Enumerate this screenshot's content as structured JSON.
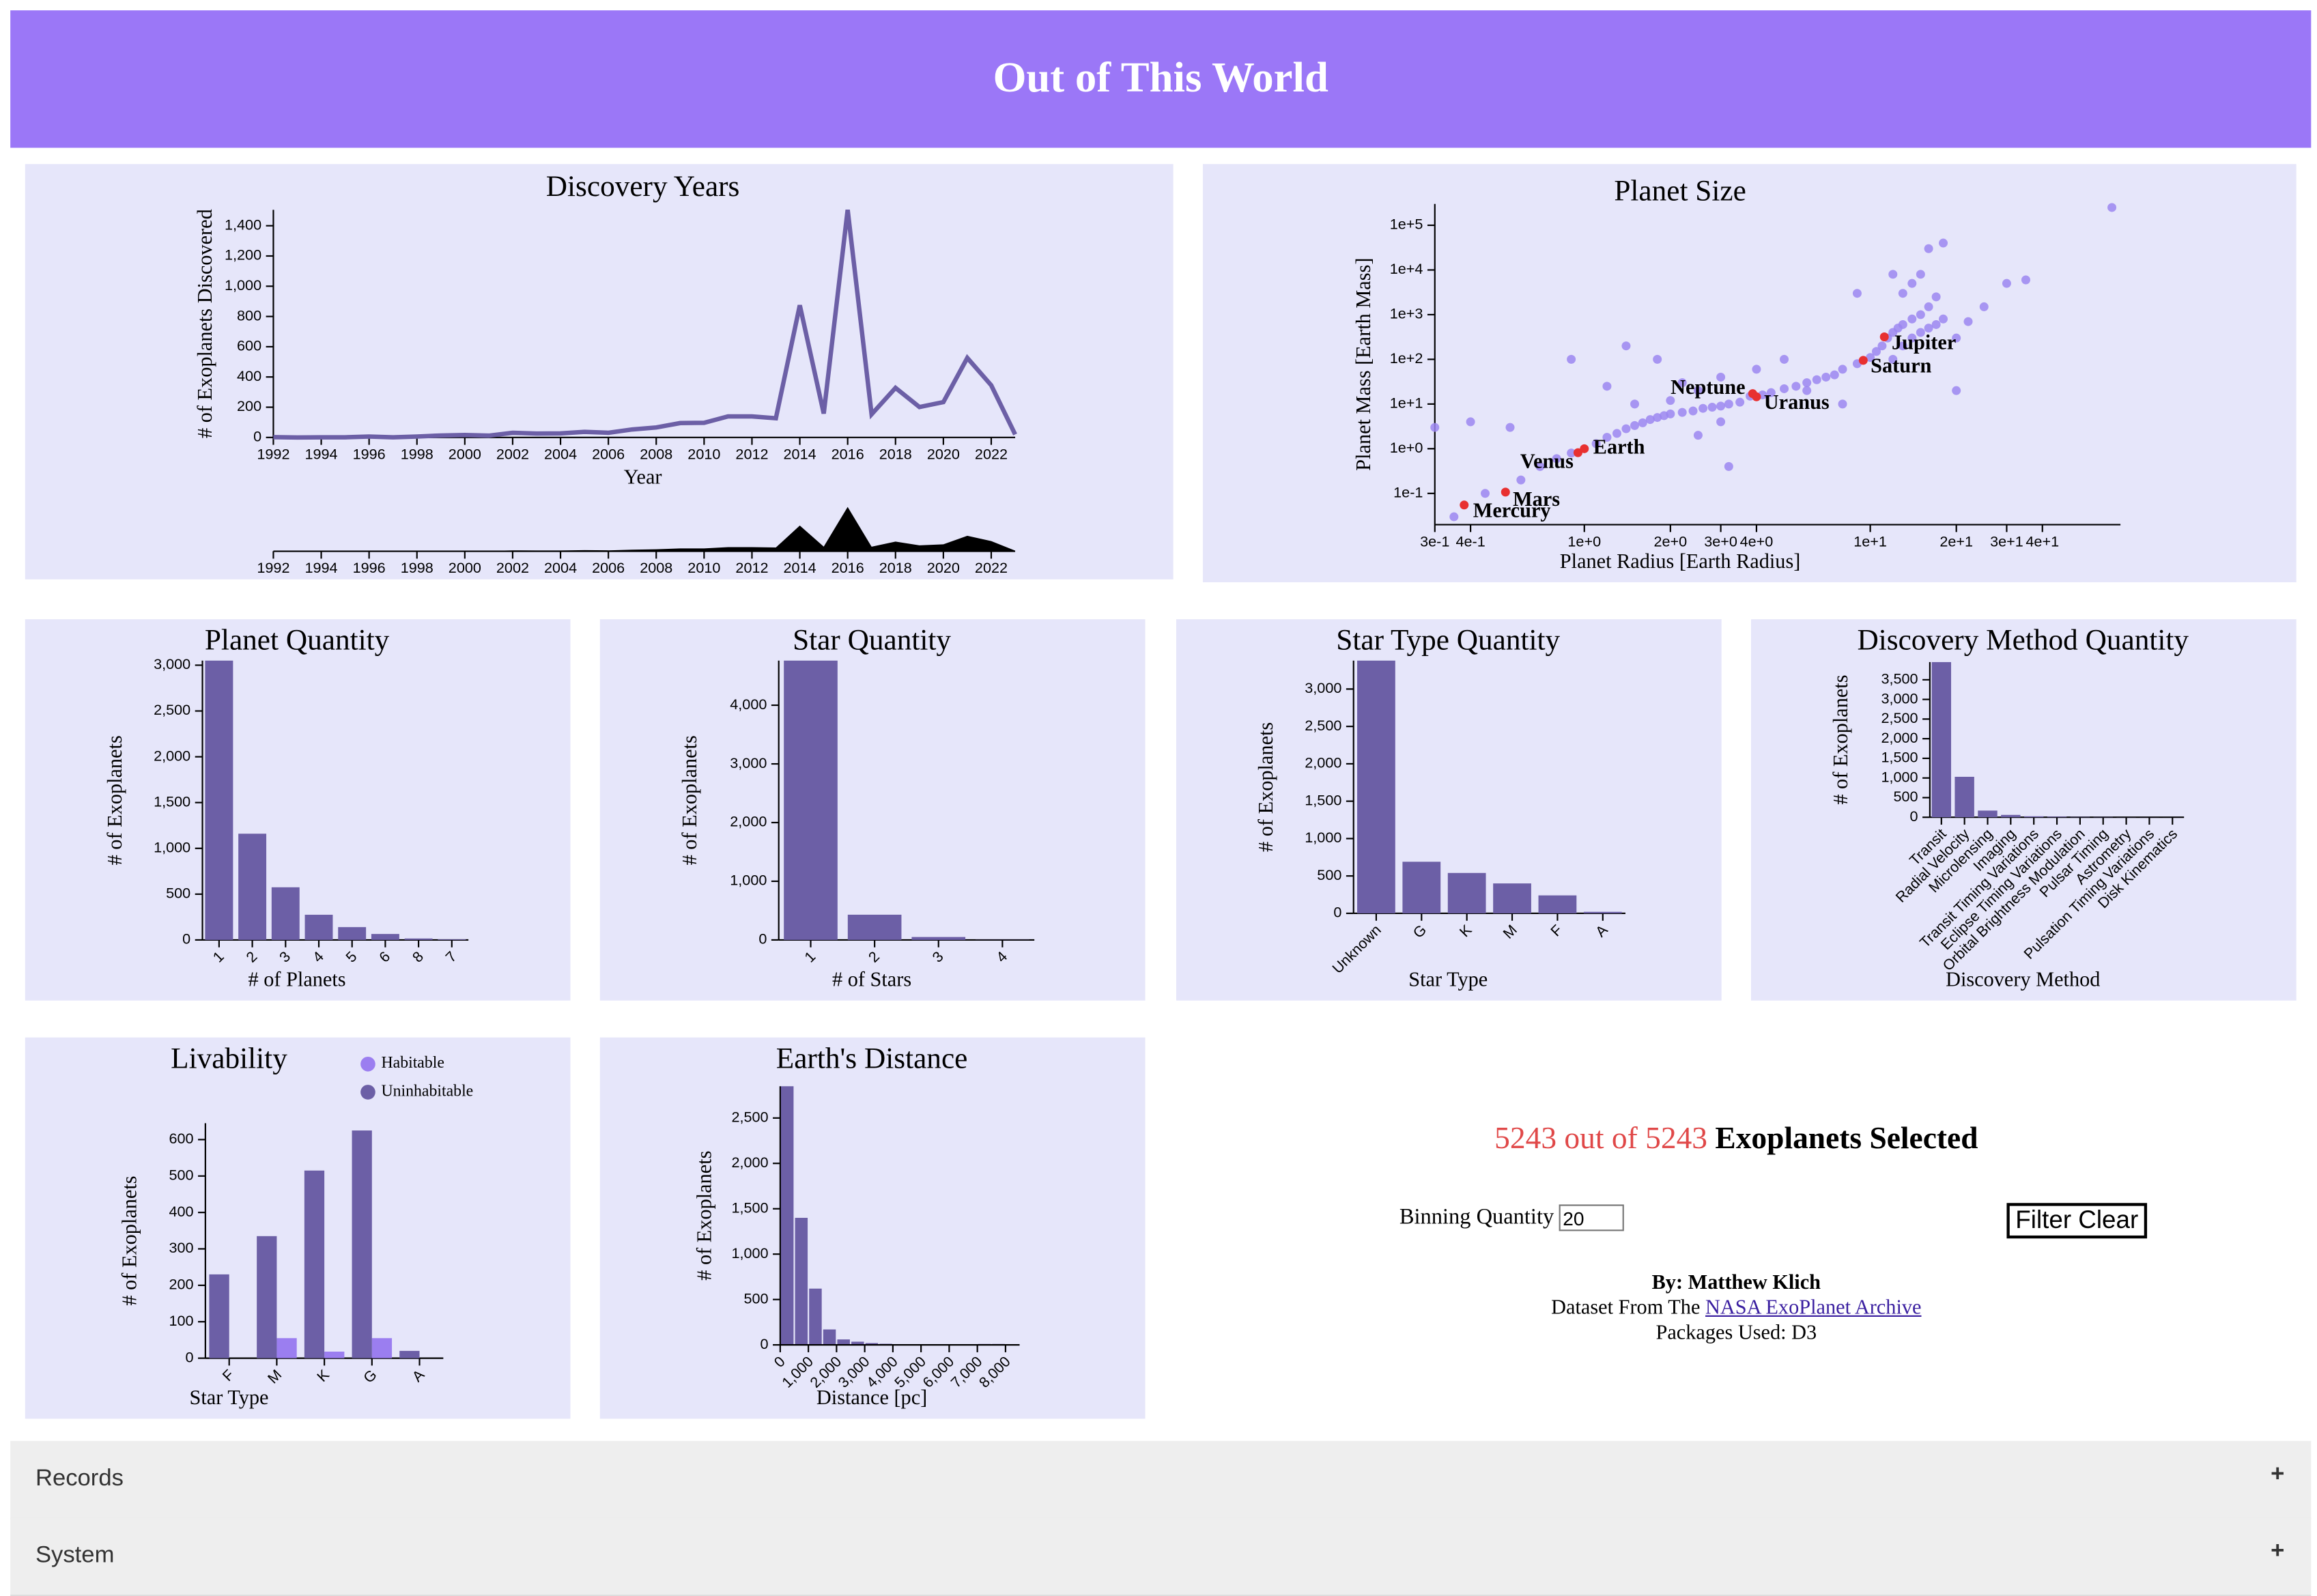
{
  "header": {
    "title": "Out of This World"
  },
  "chart_data": [
    {
      "type": "line",
      "title": "Discovery Years",
      "x_label": "Year",
      "y_label": "# of Exoplanets Discovered",
      "x": [
        1992,
        1993,
        1994,
        1995,
        1996,
        1997,
        1998,
        1999,
        2000,
        2001,
        2002,
        2003,
        2004,
        2005,
        2006,
        2007,
        2008,
        2009,
        2010,
        2011,
        2012,
        2013,
        2014,
        2015,
        2016,
        2017,
        2018,
        2019,
        2020,
        2021,
        2022,
        2023
      ],
      "values": [
        2,
        0,
        1,
        1,
        6,
        1,
        6,
        13,
        16,
        12,
        31,
        26,
        27,
        37,
        31,
        53,
        66,
        95,
        97,
        139,
        139,
        127,
        874,
        158,
        1505,
        153,
        328,
        201,
        234,
        526,
        345,
        20
      ],
      "color": "#6c5fa6",
      "context_color": "#000000",
      "xlim": [
        1992,
        2023
      ],
      "xticks": [
        1992,
        1994,
        1996,
        1998,
        2000,
        2002,
        2004,
        2006,
        2008,
        2010,
        2012,
        2014,
        2016,
        2018,
        2020,
        2022
      ],
      "ylim": [
        0,
        1505
      ],
      "yticks": [
        0,
        200,
        400,
        600,
        800,
        {
          "value": 1000,
          "label": "1,000"
        },
        {
          "value": 1200,
          "label": "1,200"
        },
        {
          "value": 1400,
          "label": "1,400"
        }
      ]
    },
    {
      "type": "scatter",
      "title": "Planet Size",
      "x_label": "Planet Radius [Earth Radius]",
      "y_label": "Planet Mass [Earth Mass]",
      "x_scale": "log",
      "y_scale": "log",
      "xlim": [
        0.3,
        75
      ],
      "ylim": [
        0.02,
        300000
      ],
      "xticks": [
        {
          "value": 0.3,
          "label": "3e-1"
        },
        {
          "value": 0.4,
          "label": "4e-1"
        },
        {
          "value": 1,
          "label": "1e+0"
        },
        {
          "value": 2,
          "label": "2e+0"
        },
        {
          "value": 3,
          "label": "3e+0"
        },
        {
          "value": 4,
          "label": "4e+0"
        },
        {
          "value": 10,
          "label": "1e+1"
        },
        {
          "value": 20,
          "label": "2e+1"
        },
        {
          "value": 30,
          "label": "3e+1"
        },
        {
          "value": 40,
          "label": "4e+1"
        }
      ],
      "yticks": [
        {
          "value": 0.1,
          "label": "1e-1"
        },
        {
          "value": 1,
          "label": "1e+0"
        },
        {
          "value": 10,
          "label": "1e+1"
        },
        {
          "value": 100,
          "label": "1e+2"
        },
        {
          "value": 1000,
          "label": "1e+3"
        },
        {
          "value": 10000,
          "label": "1e+4"
        },
        {
          "value": 100000,
          "label": "1e+5"
        }
      ],
      "x": [
        0.35,
        0.45,
        0.6,
        0.7,
        0.8,
        0.9,
        1.1,
        1.2,
        1.3,
        1.4,
        1.5,
        1.6,
        1.7,
        1.8,
        1.9,
        2.0,
        2.2,
        2.4,
        2.6,
        2.8,
        3.0,
        3.2,
        3.5,
        2.0,
        2.5,
        3,
        1.5,
        1.2,
        0.9,
        1.4,
        2.2,
        3.8,
        4.2,
        4.5,
        5,
        5.5,
        6,
        6.5,
        7,
        7.5,
        8,
        9,
        10,
        10.5,
        11,
        11.5,
        12,
        12.5,
        13,
        14,
        15,
        16,
        17,
        13,
        14,
        15,
        16,
        18,
        20,
        22,
        25,
        30,
        35,
        12,
        13,
        14,
        15,
        16,
        17,
        18,
        4,
        5,
        6,
        3,
        2.5,
        1.8,
        0.55,
        0.4,
        8,
        9,
        12,
        20,
        70,
        0.3,
        3.2
      ],
      "values": [
        0.03,
        0.1,
        0.2,
        0.4,
        0.6,
        0.8,
        1.3,
        1.8,
        2.2,
        2.8,
        3.3,
        3.8,
        4.5,
        5,
        5.5,
        6,
        6.5,
        7,
        8,
        8.5,
        9,
        10,
        11,
        12,
        20,
        4,
        10,
        25,
        100,
        200,
        30,
        15,
        16,
        18,
        22,
        25,
        30,
        35,
        40,
        45,
        60,
        80,
        110,
        150,
        200,
        300,
        400,
        500,
        600,
        800,
        1000,
        1500,
        2500,
        3000,
        5000,
        8000,
        30000,
        40000,
        300,
        700,
        1500,
        5000,
        6000,
        100,
        200,
        300,
        400,
        500,
        600,
        800,
        60,
        100,
        20,
        40,
        2,
        100,
        3,
        4,
        10,
        3000,
        8000,
        20,
        250000,
        3,
        0.4
      ],
      "color": "#9b86f0",
      "annotations": [
        {
          "text": "Mercury",
          "x": 0.38,
          "y": 0.055
        },
        {
          "text": "Venus",
          "x": 0.95,
          "y": 0.815
        },
        {
          "text": "Earth",
          "x": 1,
          "y": 1
        },
        {
          "text": "Mars",
          "x": 0.53,
          "y": 0.107
        },
        {
          "text": "Jupiter",
          "x": 11.2,
          "y": 318
        },
        {
          "text": "Saturn",
          "x": 9.45,
          "y": 95
        },
        {
          "text": "Uranus",
          "x": 4,
          "y": 14.5
        },
        {
          "text": "Neptune",
          "x": 3.88,
          "y": 17.1
        }
      ],
      "annotation_color": "#e83030"
    },
    {
      "type": "bar",
      "title": "Planet Quantity",
      "x_label": "# of Planets",
      "y_label": "# of Exoplanets",
      "categories": [
        "1",
        "2",
        "3",
        "4",
        "5",
        "6",
        "8",
        "7"
      ],
      "values": [
        3050,
        1160,
        575,
        275,
        140,
        65,
        16,
        7
      ],
      "color": "#6c5fa6",
      "ylim": [
        0,
        3050
      ],
      "yticks": [
        0,
        500,
        {
          "value": 1000,
          "label": "1,000"
        },
        {
          "value": 1500,
          "label": "1,500"
        },
        {
          "value": 2000,
          "label": "2,000"
        },
        {
          "value": 2500,
          "label": "2,500"
        },
        {
          "value": 3000,
          "label": "3,000"
        }
      ]
    },
    {
      "type": "bar",
      "title": "Star Quantity",
      "x_label": "# of Stars",
      "y_label": "# of Exoplanets",
      "categories": [
        "1",
        "2",
        "3",
        "4"
      ],
      "values": [
        4760,
        430,
        50,
        3
      ],
      "color": "#6c5fa6",
      "ylim": [
        0,
        4760
      ],
      "yticks": [
        0,
        {
          "value": 1000,
          "label": "1,000"
        },
        {
          "value": 2000,
          "label": "2,000"
        },
        {
          "value": 3000,
          "label": "3,000"
        },
        {
          "value": 4000,
          "label": "4,000"
        }
      ]
    },
    {
      "type": "bar",
      "title": "Star Type Quantity",
      "x_label": "Star Type",
      "y_label": "# of Exoplanets",
      "categories": [
        "Unknown",
        "G",
        "K",
        "M",
        "F",
        "A"
      ],
      "values": [
        3380,
        690,
        540,
        400,
        240,
        20
      ],
      "color": "#6c5fa6",
      "ylim": [
        0,
        3380
      ],
      "yticks": [
        0,
        500,
        {
          "value": 1000,
          "label": "1,000"
        },
        {
          "value": 1500,
          "label": "1,500"
        },
        {
          "value": 2000,
          "label": "2,000"
        },
        {
          "value": 2500,
          "label": "2,500"
        },
        {
          "value": 3000,
          "label": "3,000"
        }
      ]
    },
    {
      "type": "bar",
      "title": "Discovery Method Quantity",
      "x_label": "Discovery Method",
      "y_label": "# of Exoplanets",
      "categories": [
        "Transit",
        "Radial Velocity",
        "Microlensing",
        "Imaging",
        "Transit Timing Variations",
        "Eclipse Timing Variations",
        "Orbital Brightness Modulation",
        "Pulsar Timing",
        "Astrometry",
        "Pulsation Timing Variations",
        "Disk Kinematics"
      ],
      "values": [
        3950,
        1030,
        170,
        60,
        25,
        17,
        9,
        7,
        3,
        2,
        1
      ],
      "color": "#6c5fa6",
      "ylim": [
        0,
        3950
      ],
      "yticks": [
        0,
        500,
        {
          "value": 1000,
          "label": "1,000"
        },
        {
          "value": 1500,
          "label": "1,500"
        },
        {
          "value": 2000,
          "label": "2,000"
        },
        {
          "value": 2500,
          "label": "2,500"
        },
        {
          "value": 3000,
          "label": "3,000"
        },
        {
          "value": 3500,
          "label": "3,500"
        }
      ]
    },
    {
      "type": "bar",
      "title": "Livability",
      "x_label": "Star Type",
      "y_label": "# of Exoplanets",
      "categories": [
        "F",
        "M",
        "K",
        "G",
        "A"
      ],
      "series": [
        {
          "name": "Habitable",
          "color": "#9b7ef0",
          "values": [
            0,
            55,
            18,
            55,
            0
          ]
        },
        {
          "name": "Uninhabitable",
          "color": "#6c5fa6",
          "values": [
            230,
            335,
            515,
            625,
            20
          ]
        }
      ],
      "legend": "top-right",
      "ylim": [
        0,
        645
      ],
      "yticks": [
        0,
        100,
        200,
        300,
        400,
        500,
        600
      ]
    },
    {
      "type": "histogram",
      "title": "Earth's Distance",
      "x_label": "Distance [pc]",
      "y_label": "# of Exoplanets",
      "bins": [
        0,
        500,
        1000,
        1500,
        2000,
        2500,
        3000,
        3500,
        4000,
        4500,
        5000,
        5500,
        6000,
        6500,
        7000,
        7500,
        8000,
        8500
      ],
      "values": [
        2850,
        1400,
        620,
        170,
        60,
        35,
        20,
        12,
        8,
        5,
        5,
        4,
        6,
        8,
        10,
        10,
        4
      ],
      "color": "#6c5fa6",
      "xlim": [
        0,
        8500
      ],
      "xticks": [
        0,
        {
          "value": 1000,
          "label": "1,000"
        },
        {
          "value": 2000,
          "label": "2,000"
        },
        {
          "value": 3000,
          "label": "3,000"
        },
        {
          "value": 4000,
          "label": "4,000"
        },
        {
          "value": 5000,
          "label": "5,000"
        },
        {
          "value": 6000,
          "label": "6,000"
        },
        {
          "value": 7000,
          "label": "7,000"
        },
        {
          "value": 8000,
          "label": "8,000"
        }
      ],
      "ylim": [
        0,
        2850
      ],
      "yticks": [
        0,
        500,
        {
          "value": 1000,
          "label": "1,000"
        },
        {
          "value": 1500,
          "label": "1,500"
        },
        {
          "value": 2000,
          "label": "2,000"
        },
        {
          "value": 2500,
          "label": "2,500"
        }
      ]
    }
  ],
  "summary": {
    "selected": 5243,
    "join": "out of",
    "total": 5243,
    "label": "Exoplanets Selected"
  },
  "controls": {
    "binning_label": "Binning Quantity",
    "binning_value": 20,
    "button": "Filter Clear"
  },
  "credits": {
    "author": "By: Matthew Klich",
    "dataset_prefix": "Dataset From The",
    "dataset_link": "NASA ExoPlanet Archive",
    "packages": "Packages Used: D3"
  },
  "accordion": [
    {
      "label": "Records",
      "icon": "+"
    },
    {
      "label": "System",
      "icon": "+"
    }
  ]
}
